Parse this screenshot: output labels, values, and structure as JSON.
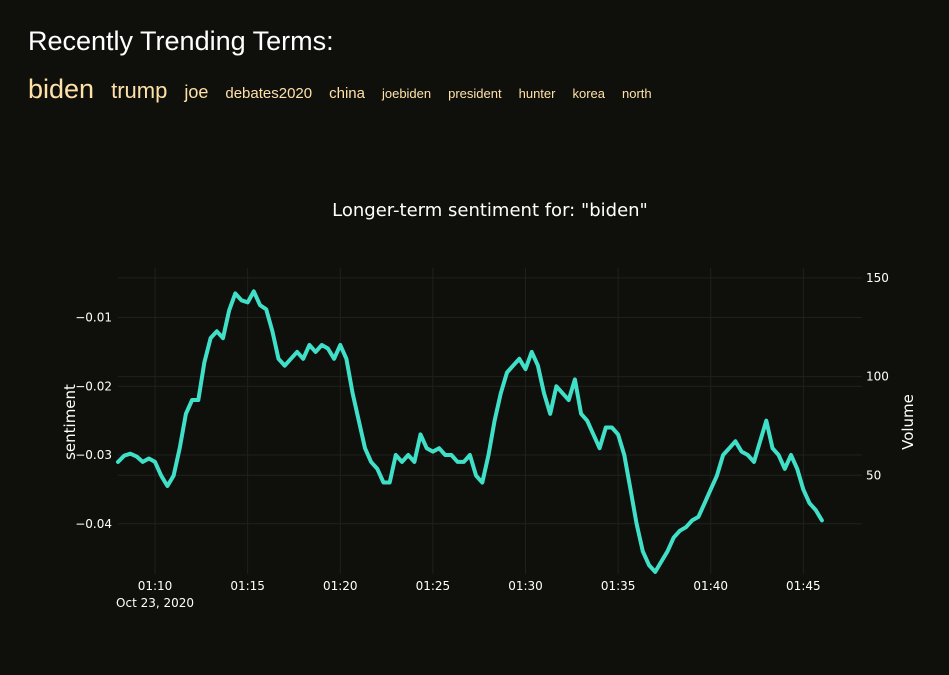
{
  "page": {
    "title": "Recently Trending Terms:",
    "trending_terms": [
      {
        "label": "biden",
        "size": 27
      },
      {
        "label": "trump",
        "size": 22
      },
      {
        "label": "joe",
        "size": 18
      },
      {
        "label": "debates2020",
        "size": 15
      },
      {
        "label": "china",
        "size": 15
      },
      {
        "label": "joebiden",
        "size": 13
      },
      {
        "label": "president",
        "size": 13
      },
      {
        "label": "hunter",
        "size": 13
      },
      {
        "label": "korea",
        "size": 13
      },
      {
        "label": "north",
        "size": 13
      }
    ]
  },
  "colors": {
    "background": "#0f0f0b",
    "sentiment_line": "#40e0c8",
    "volume_bar": "#f6f176",
    "terms": "#fee1a8",
    "grid": "#1f221c"
  },
  "chart_data": {
    "type": "line",
    "title": "Longer-term sentiment for: \"biden\"",
    "xlabel": "",
    "ylabel": "sentiment",
    "y2label": "Volume",
    "x_start_label": "Oct 23, 2020",
    "x_tick_labels": [
      "01:10",
      "01:15",
      "01:20",
      "01:25",
      "01:30",
      "01:35",
      "01:40",
      "01:45"
    ],
    "y_tick_labels": [
      "−0.01",
      "−0.02",
      "−0.03",
      "−0.04"
    ],
    "y2_tick_labels": [
      "150",
      "100",
      "50"
    ],
    "xlim": [
      "01:08",
      "01:48:10"
    ],
    "ylim": [
      -0.0473,
      -0.0028
    ],
    "y2lim": [
      0,
      155
    ],
    "sentiment_series": {
      "name": "sentiment",
      "points": [
        [
          "01:08",
          -0.031
        ],
        [
          "01:08:20",
          -0.0301
        ],
        [
          "01:08:40",
          -0.0298
        ],
        [
          "01:09",
          -0.0302
        ],
        [
          "01:09:20",
          -0.031
        ],
        [
          "01:09:40",
          -0.0305
        ],
        [
          "01:10",
          -0.031
        ],
        [
          "01:10:20",
          -0.033
        ],
        [
          "01:10:40",
          -0.0345
        ],
        [
          "01:11",
          -0.033
        ],
        [
          "01:11:20",
          -0.029
        ],
        [
          "01:11:40",
          -0.024
        ],
        [
          "01:12",
          -0.022
        ],
        [
          "01:12:20",
          -0.022
        ],
        [
          "01:12:40",
          -0.0165
        ],
        [
          "01:13",
          -0.013
        ],
        [
          "01:13:20",
          -0.012
        ],
        [
          "01:13:40",
          -0.013
        ],
        [
          "01:14",
          -0.009
        ],
        [
          "01:14:20",
          -0.0065
        ],
        [
          "01:14:40",
          -0.0075
        ],
        [
          "01:15",
          -0.0078
        ],
        [
          "01:15:20",
          -0.0062
        ],
        [
          "01:15:40",
          -0.0082
        ],
        [
          "01:16",
          -0.0088
        ],
        [
          "01:16:20",
          -0.012
        ],
        [
          "01:16:40",
          -0.016
        ],
        [
          "01:17",
          -0.017
        ],
        [
          "01:17:20",
          -0.016
        ],
        [
          "01:17:40",
          -0.015
        ],
        [
          "01:18",
          -0.016
        ],
        [
          "01:18:20",
          -0.014
        ],
        [
          "01:18:40",
          -0.015
        ],
        [
          "01:19",
          -0.014
        ],
        [
          "01:19:20",
          -0.0145
        ],
        [
          "01:19:40",
          -0.016
        ],
        [
          "01:20",
          -0.014
        ],
        [
          "01:20:20",
          -0.016
        ],
        [
          "01:20:40",
          -0.021
        ],
        [
          "01:21",
          -0.025
        ],
        [
          "01:21:20",
          -0.029
        ],
        [
          "01:21:40",
          -0.031
        ],
        [
          "01:22",
          -0.032
        ],
        [
          "01:22:20",
          -0.034
        ],
        [
          "01:22:40",
          -0.034
        ],
        [
          "01:23",
          -0.03
        ],
        [
          "01:23:20",
          -0.031
        ],
        [
          "01:23:40",
          -0.03
        ],
        [
          "01:24",
          -0.031
        ],
        [
          "01:24:20",
          -0.027
        ],
        [
          "01:24:40",
          -0.029
        ],
        [
          "01:25",
          -0.0295
        ],
        [
          "01:25:20",
          -0.029
        ],
        [
          "01:25:40",
          -0.03
        ],
        [
          "01:26",
          -0.03
        ],
        [
          "01:26:20",
          -0.031
        ],
        [
          "01:26:40",
          -0.031
        ],
        [
          "01:27",
          -0.03
        ],
        [
          "01:27:20",
          -0.033
        ],
        [
          "01:27:40",
          -0.034
        ],
        [
          "01:28",
          -0.03
        ],
        [
          "01:28:20",
          -0.025
        ],
        [
          "01:28:40",
          -0.021
        ],
        [
          "01:29",
          -0.018
        ],
        [
          "01:29:20",
          -0.017
        ],
        [
          "01:29:40",
          -0.016
        ],
        [
          "01:30",
          -0.0175
        ],
        [
          "01:30:20",
          -0.015
        ],
        [
          "01:30:40",
          -0.017
        ],
        [
          "01:31",
          -0.021
        ],
        [
          "01:31:20",
          -0.024
        ],
        [
          "01:31:40",
          -0.02
        ],
        [
          "01:32",
          -0.021
        ],
        [
          "01:32:20",
          -0.022
        ],
        [
          "01:32:40",
          -0.019
        ],
        [
          "01:33",
          -0.024
        ],
        [
          "01:33:20",
          -0.025
        ],
        [
          "01:33:40",
          -0.027
        ],
        [
          "01:34",
          -0.029
        ],
        [
          "01:34:20",
          -0.026
        ],
        [
          "01:34:40",
          -0.026
        ],
        [
          "01:35",
          -0.027
        ],
        [
          "01:35:20",
          -0.03
        ],
        [
          "01:35:40",
          -0.035
        ],
        [
          "01:36",
          -0.04
        ],
        [
          "01:36:20",
          -0.044
        ],
        [
          "01:36:40",
          -0.046
        ],
        [
          "01:37",
          -0.047
        ],
        [
          "01:37:20",
          -0.0455
        ],
        [
          "01:37:40",
          -0.044
        ],
        [
          "01:38",
          -0.042
        ],
        [
          "01:38:20",
          -0.041
        ],
        [
          "01:38:40",
          -0.0405
        ],
        [
          "01:39",
          -0.0395
        ],
        [
          "01:39:20",
          -0.039
        ],
        [
          "01:39:40",
          -0.037
        ],
        [
          "01:40",
          -0.035
        ],
        [
          "01:40:20",
          -0.033
        ],
        [
          "01:40:40",
          -0.03
        ],
        [
          "01:41",
          -0.029
        ],
        [
          "01:41:20",
          -0.028
        ],
        [
          "01:41:40",
          -0.0295
        ],
        [
          "01:42",
          -0.03
        ],
        [
          "01:42:20",
          -0.031
        ],
        [
          "01:42:40",
          -0.028
        ],
        [
          "01:43",
          -0.025
        ],
        [
          "01:43:20",
          -0.029
        ],
        [
          "01:43:40",
          -0.03
        ],
        [
          "01:44",
          -0.032
        ],
        [
          "01:44:20",
          -0.03
        ],
        [
          "01:44:40",
          -0.032
        ],
        [
          "01:45",
          -0.035
        ],
        [
          "01:45:20",
          -0.037
        ],
        [
          "01:45:40",
          -0.038
        ],
        [
          "01:46",
          -0.0395
        ]
      ]
    },
    "volume_series": {
      "name": "Volume",
      "points": []
    }
  }
}
